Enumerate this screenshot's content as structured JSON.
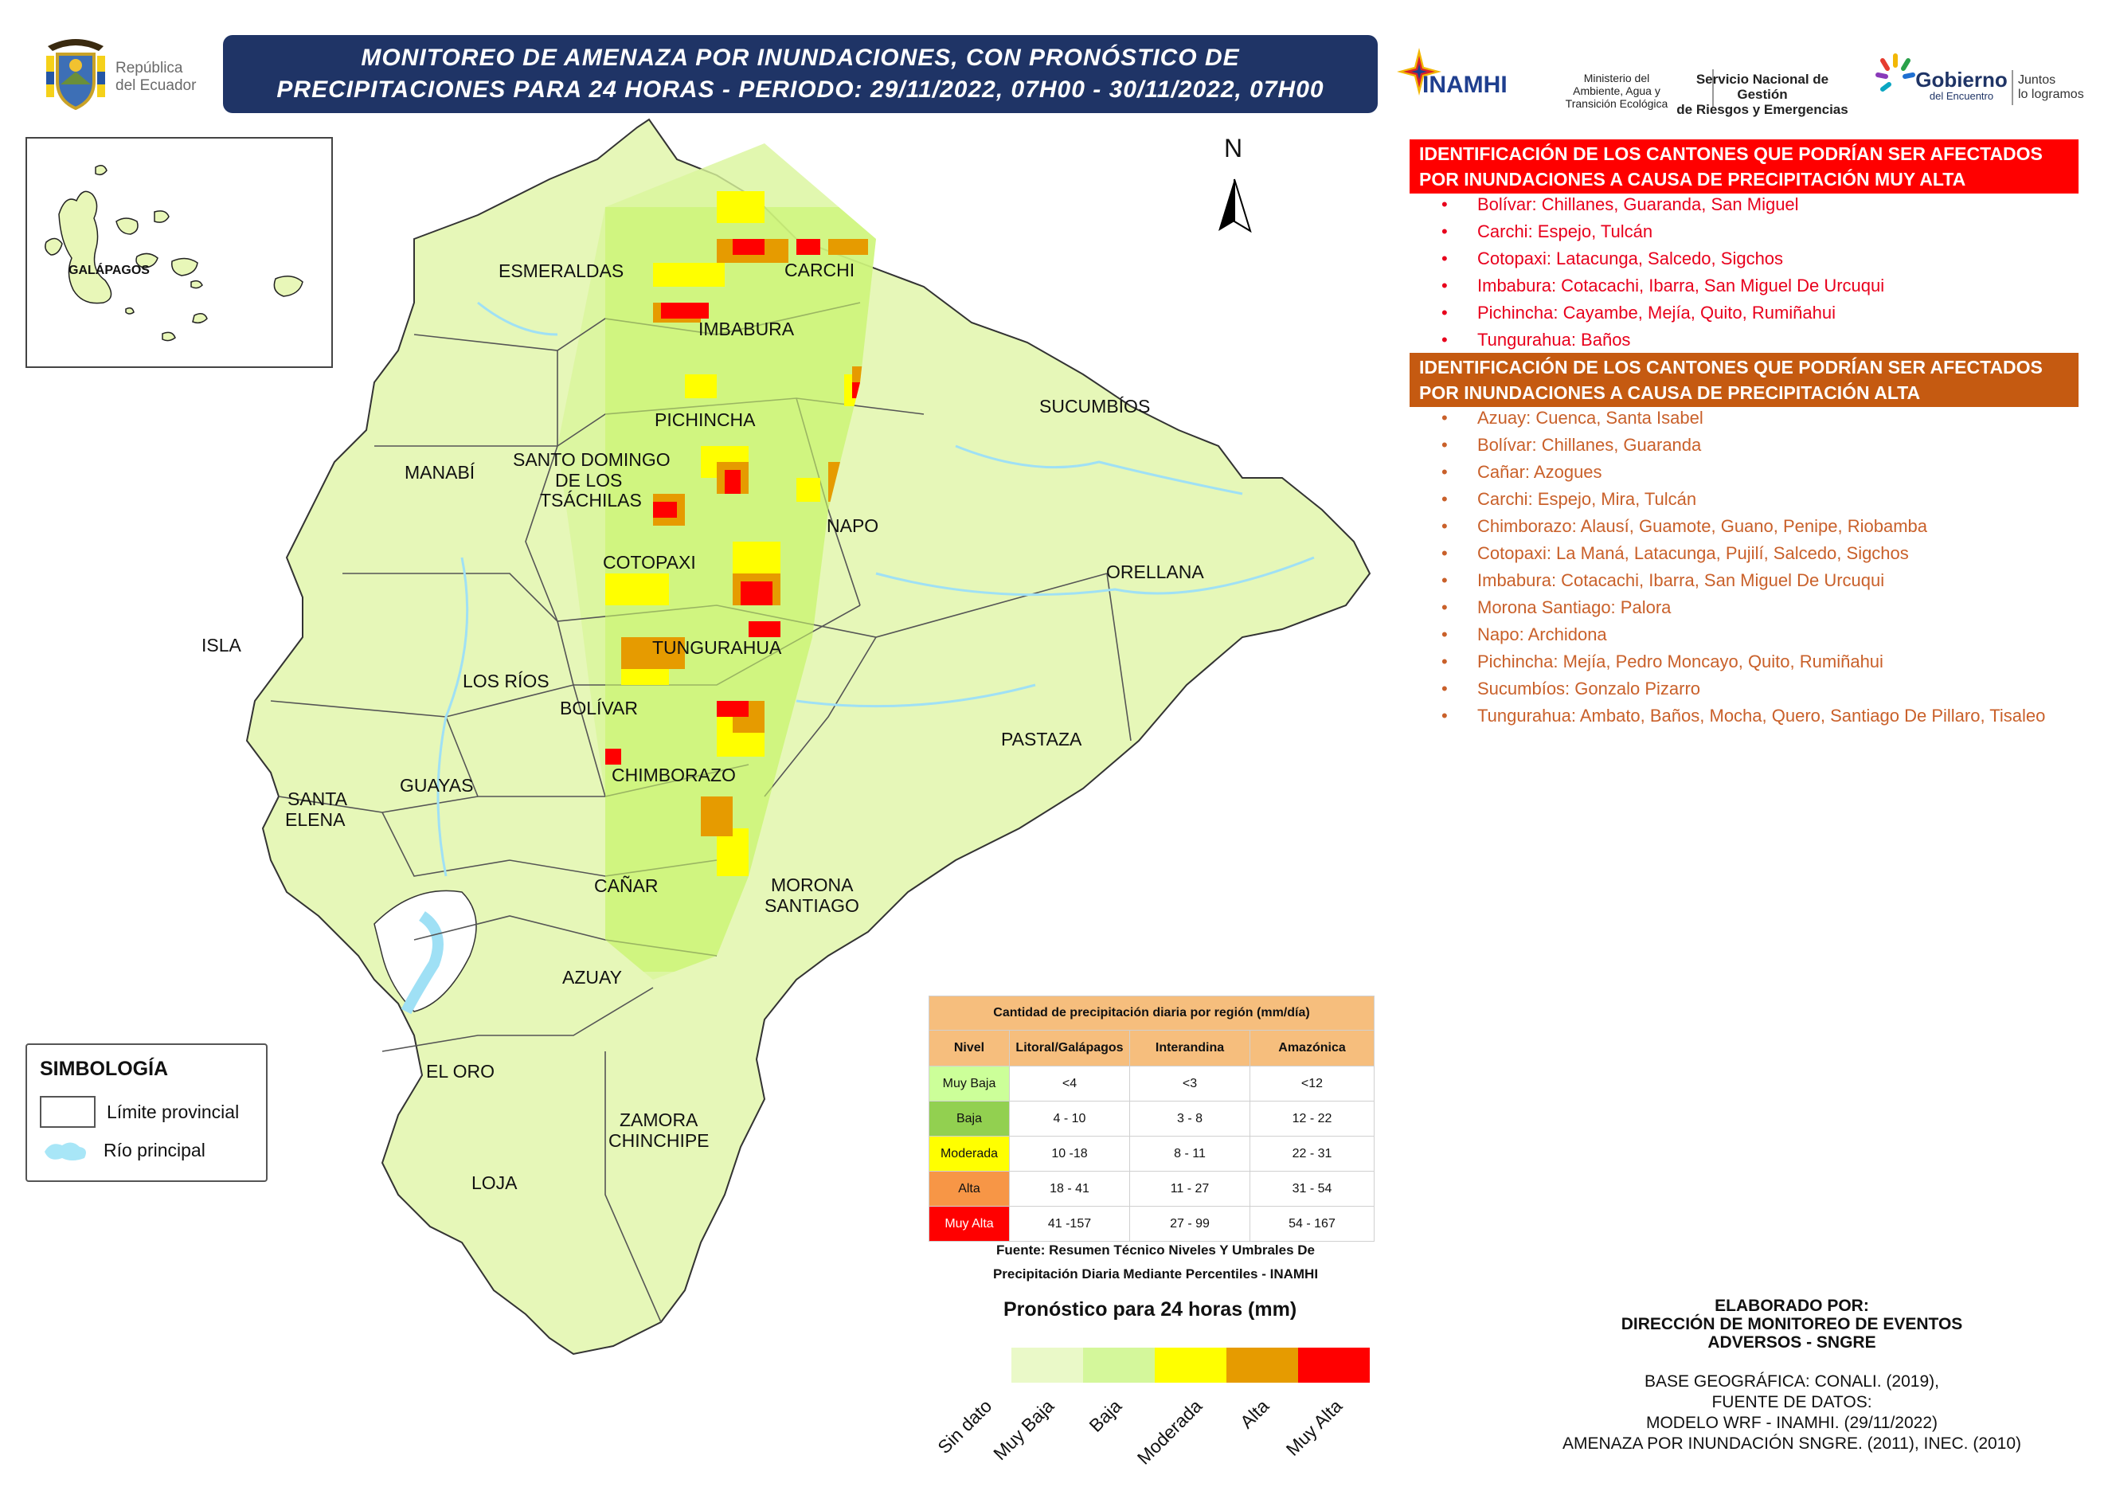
{
  "header": {
    "title_line1": "MONITOREO DE AMENAZA POR INUNDACIONES, CON PRONÓSTICO DE",
    "title_line2": "PRECIPITACIONES  PARA 24  HORAS - PERIODO: 29/11/2022, 07H00 - 30/11/2022, 07H00",
    "republica_line1": "República",
    "republica_line2": "del Ecuador",
    "logos": {
      "inamhi": "INAMHI",
      "ministerio": [
        "Ministerio del",
        "Ambiente, Agua y",
        "Transición Ecológica"
      ],
      "sngre": [
        "Servicio Nacional de Gestión",
        "de Riesgos y Emergencias"
      ],
      "gobierno": [
        "Gobierno",
        "del Encuentro"
      ],
      "juntos": [
        "Juntos",
        "lo logramos"
      ]
    }
  },
  "map": {
    "north_label": "N",
    "inset_label": "GALÁPAGOS",
    "provinces": [
      {
        "name": "ESMERALDAS"
      },
      {
        "name": "CARCHI"
      },
      {
        "name": "IMBABURA"
      },
      {
        "name": "SUCUMBÍOS"
      },
      {
        "name": "PICHINCHA"
      },
      {
        "name": "MANABÍ"
      },
      {
        "name": "SANTO DOMINGO"
      },
      {
        "name": "DE LOS"
      },
      {
        "name": "TSÁCHILAS"
      },
      {
        "name": "NAPO"
      },
      {
        "name": "COTOPAXI"
      },
      {
        "name": "ORELLANA"
      },
      {
        "name": "ISLA"
      },
      {
        "name": "TUNGURAHUA"
      },
      {
        "name": "LOS RÍOS"
      },
      {
        "name": "BOLÍVAR"
      },
      {
        "name": "PASTAZA"
      },
      {
        "name": "SANTA"
      },
      {
        "name": "ELENA"
      },
      {
        "name": "GUAYAS"
      },
      {
        "name": "CHIMBORAZO"
      },
      {
        "name": "CAÑAR"
      },
      {
        "name": "MORONA"
      },
      {
        "name": "SANTIAGO"
      },
      {
        "name": "AZUAY"
      },
      {
        "name": "EL ORO"
      },
      {
        "name": "ZAMORA"
      },
      {
        "name": "CHINCHIPE"
      },
      {
        "name": "LOJA"
      }
    ]
  },
  "simbologia": {
    "title": "SIMBOLOGÍA",
    "items": [
      {
        "label": "Límite provincial"
      },
      {
        "label": "Río principal"
      }
    ]
  },
  "muy_alta": {
    "heading": "IDENTIFICACIÓN DE LOS CANTONES QUE PODRÍAN SER AFECTADOS POR INUNDACIONES A CAUSA DE  PRECIPITACIÓN MUY ALTA",
    "color": "#ff0000",
    "items": [
      "Bolívar: Chillanes, Guaranda, San Miguel",
      "Carchi: Espejo, Tulcán",
      "Cotopaxi: Latacunga, Salcedo, Sigchos",
      "Imbabura: Cotacachi, Ibarra, San Miguel De Urcuqui",
      "Pichincha: Cayambe, Mejía, Quito, Rumiñahui",
      "Tungurahua: Baños"
    ]
  },
  "alta": {
    "heading": "IDENTIFICACIÓN DE LOS CANTONES QUE PODRÍAN SER AFECTADOS POR INUNDACIONES A CAUSA DE  PRECIPITACIÓN  ALTA",
    "color": "#c55a11",
    "items": [
      "Azuay: Cuenca, Santa Isabel",
      "Bolívar: Chillanes, Guaranda",
      "Cañar: Azogues",
      "Carchi: Espejo, Mira, Tulcán",
      "Chimborazo: Alausí, Guamote, Guano, Penipe, Riobamba",
      "Cotopaxi: La Maná, Latacunga, Pujilí, Salcedo, Sigchos",
      "Imbabura: Cotacachi, Ibarra, San Miguel De Urcuqui",
      "Morona Santiago: Palora",
      "Napo: Archidona",
      "Pichincha: Mejía, Pedro Moncayo, Quito, Rumiñahui",
      "Sucumbíos: Gonzalo Pizarro",
      "Tungurahua: Ambato, Baños, Mocha, Quero, Santiago De Pillaro, Tisaleo"
    ]
  },
  "threshold_table": {
    "caption": "Cantidad de precipitación diaria por región (mm/día)",
    "headers": [
      "Nivel",
      "Litoral/Galápagos",
      "Interandina",
      "Amazónica"
    ],
    "rows": [
      {
        "level": "Muy Baja",
        "color": "#ccff99",
        "litoral": "<4",
        "interandina": "<3",
        "amazonica": "<12"
      },
      {
        "level": "Baja",
        "color": "#92d050",
        "litoral": "4 - 10",
        "interandina": "3 - 8",
        "amazonica": "12 - 22"
      },
      {
        "level": "Moderada",
        "color": "#ffff00",
        "litoral": "10 -18",
        "interandina": "8 - 11",
        "amazonica": "22 - 31"
      },
      {
        "level": "Alta",
        "color": "#f79646",
        "litoral": "18 - 41",
        "interandina": "11 - 27",
        "amazonica": "31 - 54"
      },
      {
        "level": "Muy Alta",
        "color": "#ff0000",
        "litoral": "41 -157",
        "interandina": "27 - 99",
        "amazonica": "54 - 167"
      }
    ],
    "source_line1": "Fuente: Resumen Técnico Niveles Y Umbrales De",
    "source_line2": "Precipitación Diaria Mediante Percentiles - INAMHI"
  },
  "forecast_legend": {
    "title": "Pronóstico para 24 horas (mm)",
    "classes": [
      {
        "label": "Sin dato",
        "color": "#eaf9c8"
      },
      {
        "label": "Muy Baja",
        "color": "#d4f79b"
      },
      {
        "label": "Baja",
        "color": "#c8f56b"
      },
      {
        "label": "Moderada",
        "color": "#ffff00"
      },
      {
        "label": "Alta",
        "color": "#e69b00"
      },
      {
        "label": "Muy Alta",
        "color": "#ff0000"
      }
    ]
  },
  "credits": {
    "elaborado": [
      "ELABORADO POR:",
      "DIRECCIÓN DE MONITOREO DE EVENTOS",
      "ADVERSOS - SNGRE"
    ],
    "base": [
      "BASE GEOGRÁFICA: CONALI. (2019),",
      "FUENTE DE DATOS:",
      "MODELO WRF - INAMHI. (29/11/2022)",
      "AMENAZA POR INUNDACIÓN SNGRE. (2011), INEC. (2010)"
    ]
  }
}
